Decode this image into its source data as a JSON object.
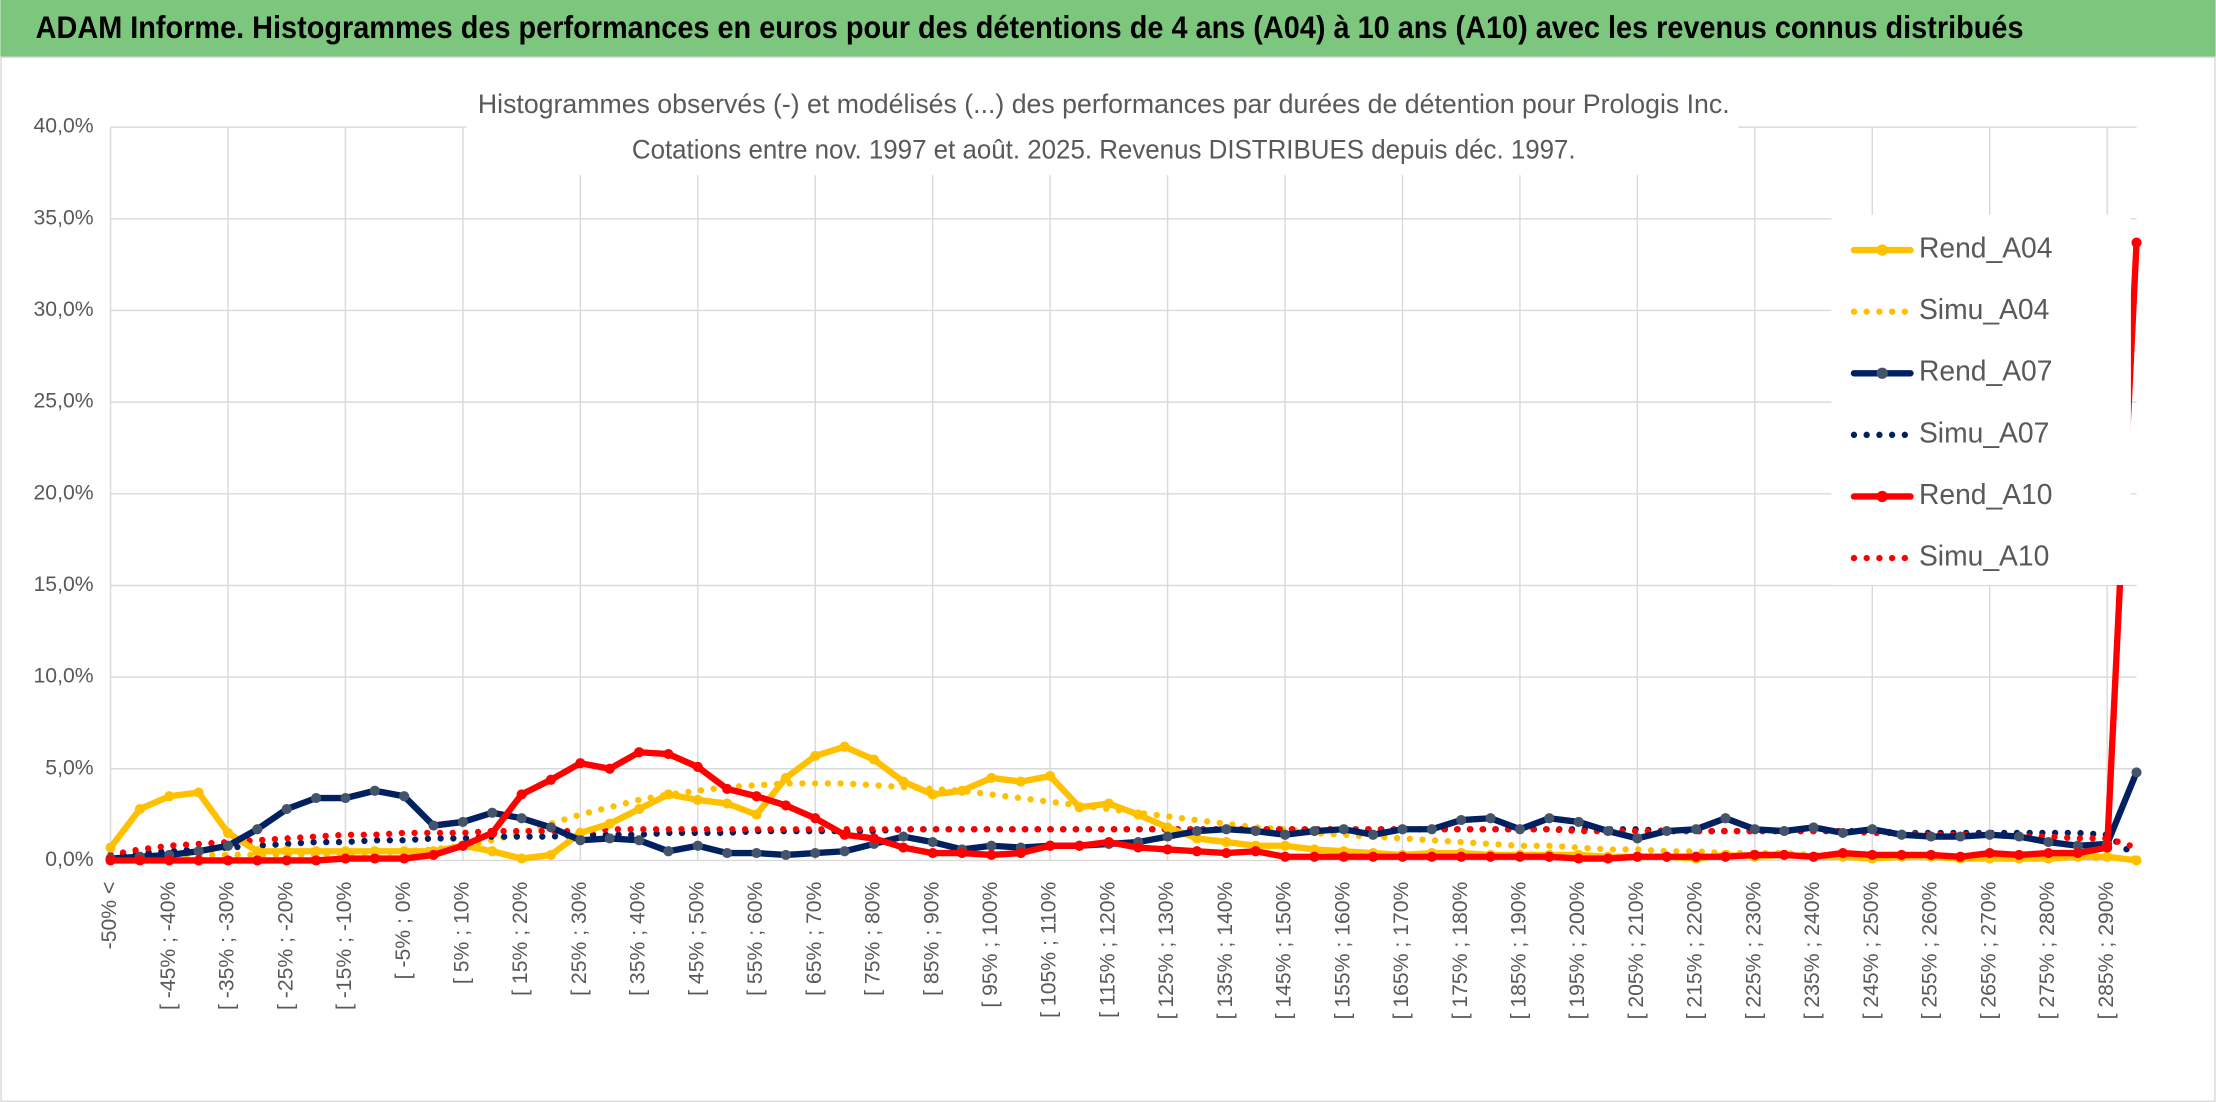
{
  "header": {
    "title": "ADAM Informe. Histogrammes des performances en euros pour des détentions de 4 ans (A04) à 10 ans (A10) avec les revenus connus distribués"
  },
  "chart_data": {
    "type": "line",
    "title": "Histogrammes observés (-) et modélisés (...) des performances par durées de détention pour Prologis Inc.",
    "subtitle": "Cotations entre nov. 1997 et août. 2025. Revenus DISTRIBUES depuis déc. 1997.",
    "categories": [
      "-50% <",
      null,
      "[ -45% ; -40%",
      null,
      "[ -35% ; -30%",
      null,
      "[ -25% ; -20%",
      null,
      "[ -15% ; -10%",
      null,
      "[ -5% ; 0%",
      null,
      "[ 5% ; 10%",
      null,
      "[ 15% ; 20%",
      null,
      "[ 25% ; 30%",
      null,
      "[ 35% ; 40%",
      null,
      "[ 45% ; 50%",
      null,
      "[ 55% ; 60%",
      null,
      "[ 65% ; 70%",
      null,
      "[ 75% ; 80%",
      null,
      "[ 85% ; 90%",
      null,
      "[ 95% ; 100%",
      null,
      "[ 105% ; 110%",
      null,
      "[ 115% ; 120%",
      null,
      "[ 125% ; 130%",
      null,
      "[ 135% ; 140%",
      null,
      "[ 145% ; 150%",
      null,
      "[ 155% ; 160%",
      null,
      "[ 165% ; 170%",
      null,
      "[ 175% ; 180%",
      null,
      "[ 185% ; 190%",
      null,
      "[ 195% ; 200%",
      null,
      "[ 205% ; 210%",
      null,
      "[ 215% ; 220%",
      null,
      "[ 225% ; 230%",
      null,
      "[ 235% ; 240%",
      null,
      "[ 245% ; 250%",
      null,
      "[ 255% ; 260%",
      null,
      "[ 265% ; 270%",
      null,
      "[ 275% ; 280%",
      null,
      "[ 285% ; 290%",
      null
    ],
    "ylim": [
      0,
      40
    ],
    "yticks": [
      {
        "value": 0,
        "label": "0,0%"
      },
      {
        "value": 5,
        "label": "5,0%"
      },
      {
        "value": 10,
        "label": "10,0%"
      },
      {
        "value": 15,
        "label": "15,0%"
      },
      {
        "value": 20,
        "label": "20,0%"
      },
      {
        "value": 25,
        "label": "25,0%"
      },
      {
        "value": 30,
        "label": "30,0%"
      },
      {
        "value": 35,
        "label": "35,0%"
      },
      {
        "value": 40,
        "label": "40,0%"
      }
    ],
    "grid": true,
    "legend": "right",
    "series": [
      {
        "name": "Rend_A04",
        "color": "#ffc000",
        "linestyle": "solid",
        "marker_color": "#ffc000",
        "values": [
          0.7,
          2.8,
          3.5,
          3.7,
          1.5,
          0.5,
          0.5,
          0.5,
          0.5,
          0.5,
          0.5,
          0.5,
          0.8,
          0.5,
          0.1,
          0.3,
          1.5,
          2.0,
          2.8,
          3.6,
          3.3,
          3.1,
          2.5,
          4.5,
          5.7,
          6.2,
          5.5,
          4.3,
          3.6,
          3.8,
          4.5,
          4.3,
          4.6,
          2.9,
          3.1,
          2.5,
          1.8,
          1.2,
          1.0,
          0.8,
          0.8,
          0.6,
          0.5,
          0.4,
          0.3,
          0.4,
          0.4,
          0.3,
          0.3,
          0.3,
          0.3,
          0.2,
          0.2,
          0.2,
          0.1,
          0.3,
          0.2,
          0.3,
          0.2,
          0.2,
          0.1,
          0.2,
          0.2,
          0.1,
          0.1,
          0.1,
          0.1,
          0.2,
          0.2,
          0.0
        ]
      },
      {
        "name": "Simu_A04",
        "color": "#ffc000",
        "linestyle": "dotted",
        "values": [
          0.3,
          0.3,
          0.3,
          0.3,
          0.3,
          0.3,
          0.3,
          0.3,
          0.4,
          0.4,
          0.5,
          0.6,
          0.8,
          1.1,
          1.5,
          2.0,
          2.5,
          2.9,
          3.3,
          3.6,
          3.8,
          4.0,
          4.1,
          4.2,
          4.2,
          4.2,
          4.1,
          4.0,
          3.9,
          3.8,
          3.6,
          3.4,
          3.2,
          3.0,
          2.8,
          2.6,
          2.4,
          2.2,
          2.0,
          1.8,
          1.7,
          1.5,
          1.4,
          1.3,
          1.2,
          1.1,
          1.0,
          0.9,
          0.8,
          0.8,
          0.7,
          0.6,
          0.6,
          0.5,
          0.5,
          0.4,
          0.4,
          0.4,
          0.3,
          0.3,
          0.3,
          0.3,
          0.2,
          0.2,
          0.2,
          0.2,
          0.2,
          0.2,
          0.1,
          0.1
        ]
      },
      {
        "name": "Rend_A07",
        "color": "#002060",
        "linestyle": "solid",
        "marker_color": "#44546a",
        "values": [
          0.1,
          0.2,
          0.3,
          0.5,
          0.8,
          1.7,
          2.8,
          3.4,
          3.4,
          3.8,
          3.5,
          1.9,
          2.1,
          2.6,
          2.3,
          1.8,
          1.1,
          1.2,
          1.1,
          0.5,
          0.8,
          0.4,
          0.4,
          0.3,
          0.4,
          0.5,
          0.9,
          1.3,
          1.0,
          0.6,
          0.8,
          0.7,
          0.8,
          0.8,
          0.9,
          1.0,
          1.3,
          1.6,
          1.7,
          1.6,
          1.4,
          1.6,
          1.7,
          1.4,
          1.7,
          1.7,
          2.2,
          2.3,
          1.7,
          2.3,
          2.1,
          1.6,
          1.2,
          1.6,
          1.7,
          2.3,
          1.7,
          1.6,
          1.8,
          1.5,
          1.7,
          1.4,
          1.3,
          1.3,
          1.4,
          1.3,
          1.0,
          0.8,
          0.9,
          4.8
        ]
      },
      {
        "name": "Simu_A07",
        "color": "#002060",
        "linestyle": "dotted",
        "values": [
          0.3,
          0.4,
          0.5,
          0.6,
          0.7,
          0.8,
          0.9,
          1.0,
          1.0,
          1.1,
          1.1,
          1.2,
          1.2,
          1.3,
          1.3,
          1.3,
          1.4,
          1.4,
          1.4,
          1.5,
          1.5,
          1.5,
          1.6,
          1.6,
          1.6,
          1.6,
          1.6,
          1.7,
          1.7,
          1.7,
          1.7,
          1.7,
          1.7,
          1.7,
          1.7,
          1.7,
          1.7,
          1.7,
          1.7,
          1.7,
          1.7,
          1.7,
          1.7,
          1.7,
          1.7,
          1.7,
          1.7,
          1.7,
          1.7,
          1.7,
          1.7,
          1.7,
          1.7,
          1.6,
          1.6,
          1.6,
          1.6,
          1.6,
          1.6,
          1.6,
          1.6,
          1.5,
          1.5,
          1.5,
          1.5,
          1.5,
          1.5,
          1.5,
          1.4,
          0.2
        ]
      },
      {
        "name": "Rend_A10",
        "color": "#ff0000",
        "linestyle": "solid",
        "marker_color": "#ff0000",
        "values": [
          0,
          0,
          0,
          0,
          0,
          0,
          0,
          0,
          0.1,
          0.1,
          0.1,
          0.3,
          0.8,
          1.5,
          3.6,
          4.4,
          5.3,
          5.0,
          5.9,
          5.8,
          5.1,
          3.9,
          3.5,
          3.0,
          2.3,
          1.4,
          1.2,
          0.7,
          0.4,
          0.4,
          0.3,
          0.4,
          0.8,
          0.8,
          1.0,
          0.7,
          0.6,
          0.5,
          0.4,
          0.5,
          0.2,
          0.2,
          0.2,
          0.2,
          0.2,
          0.2,
          0.2,
          0.2,
          0.2,
          0.2,
          0.1,
          0.1,
          0.2,
          0.2,
          0.2,
          0.2,
          0.3,
          0.3,
          0.2,
          0.4,
          0.3,
          0.3,
          0.3,
          0.2,
          0.4,
          0.3,
          0.4,
          0.4,
          0.7,
          33.7
        ]
      },
      {
        "name": "Simu_A10",
        "color": "#ff0000",
        "linestyle": "dotted",
        "values": [
          0.3,
          0.6,
          0.8,
          0.9,
          1.0,
          1.1,
          1.2,
          1.3,
          1.4,
          1.4,
          1.5,
          1.5,
          1.5,
          1.6,
          1.6,
          1.6,
          1.6,
          1.7,
          1.7,
          1.7,
          1.7,
          1.7,
          1.7,
          1.7,
          1.7,
          1.7,
          1.7,
          1.7,
          1.7,
          1.7,
          1.7,
          1.7,
          1.7,
          1.7,
          1.7,
          1.7,
          1.7,
          1.7,
          1.7,
          1.7,
          1.7,
          1.7,
          1.7,
          1.7,
          1.7,
          1.7,
          1.7,
          1.7,
          1.7,
          1.7,
          1.6,
          1.6,
          1.6,
          1.6,
          1.6,
          1.6,
          1.6,
          1.6,
          1.6,
          1.6,
          1.5,
          1.5,
          1.4,
          1.4,
          1.4,
          1.3,
          1.3,
          1.2,
          1.2,
          0.7
        ]
      }
    ]
  }
}
